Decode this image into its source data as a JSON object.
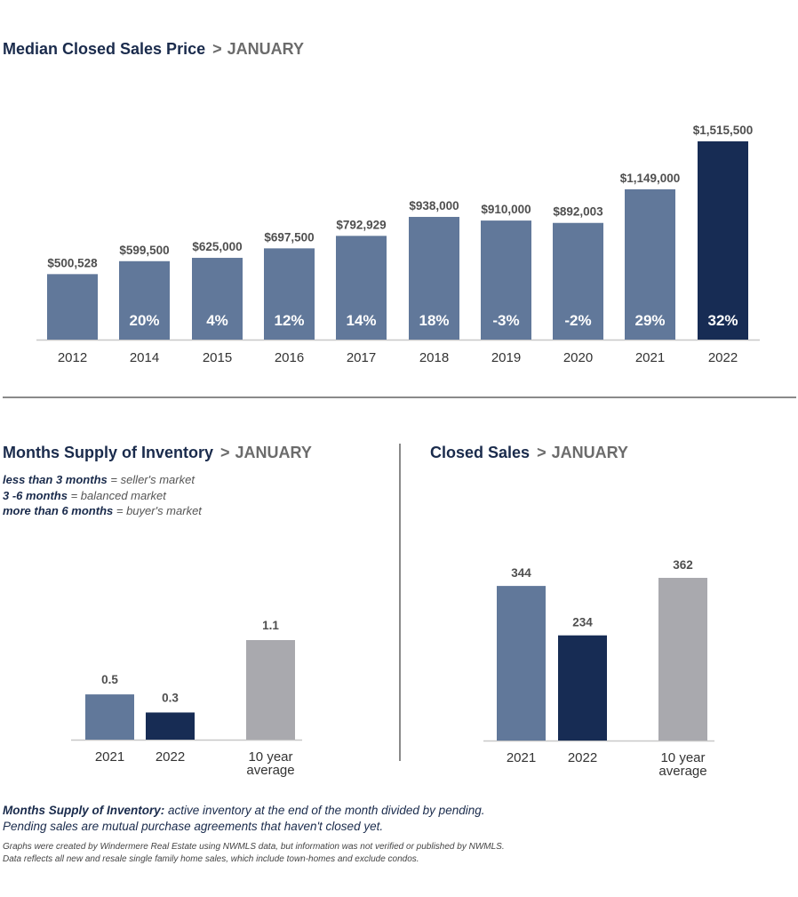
{
  "colors": {
    "bar": "#61789a",
    "highlight": "#172c54",
    "average": "#a9a9ae",
    "axis": "#c8c8c8",
    "divider": "#8a8a8a",
    "value_text": "#4f4f4f",
    "percent_text": "#ffffff"
  },
  "median_price": {
    "title": "Median Closed Sales Price",
    "sep": ">",
    "month": "JANUARY"
  },
  "months_supply": {
    "title": "Months Supply of Inventory",
    "sep": ">",
    "month": "JANUARY",
    "legend": [
      {
        "bold": "less than 3 months",
        "rest": " = seller's market"
      },
      {
        "bold": "3 -6 months",
        "rest": " = balanced market"
      },
      {
        "bold": "more than 6 months",
        "rest": " = buyer's market"
      }
    ]
  },
  "closed_sales": {
    "title": "Closed Sales",
    "sep": ">",
    "month": "JANUARY"
  },
  "footer": {
    "definition_term": "Months Supply of Inventory:",
    "definition_text": " active inventory at the end of the month divided by pending.",
    "pending_text": "Pending sales are mutual purchase agreements that haven't closed yet.",
    "source_line1": "Graphs were created by Windermere Real Estate using NWMLS data, but information was not verified or published by NWMLS.",
    "source_line2": "Data reflects all new and resale single family home sales, which include town-homes and exclude condos."
  },
  "chart_data": [
    {
      "type": "bar",
      "title": "Median Closed Sales Price > JANUARY",
      "categories": [
        "2012",
        "2014",
        "2015",
        "2016",
        "2017",
        "2018",
        "2019",
        "2020",
        "2021",
        "2022"
      ],
      "values": [
        500528,
        599500,
        625000,
        697500,
        792929,
        938000,
        910000,
        892003,
        1149000,
        1515500
      ],
      "value_labels": [
        "$500,528",
        "$599,500",
        "$625,000",
        "$697,500",
        "$792,929",
        "$938,000",
        "$910,000",
        "$892,003",
        "$1,149,000",
        "$1,515,500"
      ],
      "percent_change": [
        "",
        "20%",
        "4%",
        "12%",
        "14%",
        "18%",
        "-3%",
        "-2%",
        "29%",
        "32%"
      ],
      "highlight_index": 9,
      "ylim": [
        0,
        1515500
      ]
    },
    {
      "type": "bar",
      "title": "Months Supply of Inventory > JANUARY",
      "categories": [
        "2021",
        "2022",
        "10 year average"
      ],
      "category_lines": [
        [
          "2021"
        ],
        [
          "2022"
        ],
        [
          "10 year",
          "average"
        ]
      ],
      "values": [
        0.5,
        0.3,
        1.1
      ],
      "value_labels": [
        "0.5",
        "0.3",
        "1.1"
      ],
      "ylim": [
        0,
        1.1
      ]
    },
    {
      "type": "bar",
      "title": "Closed Sales > JANUARY",
      "categories": [
        "2021",
        "2022",
        "10 year average"
      ],
      "category_lines": [
        [
          "2021"
        ],
        [
          "2022"
        ],
        [
          "10 year",
          "average"
        ]
      ],
      "values": [
        344,
        234,
        362
      ],
      "value_labels": [
        "344",
        "234",
        "362"
      ],
      "ylim": [
        0,
        362
      ]
    }
  ]
}
